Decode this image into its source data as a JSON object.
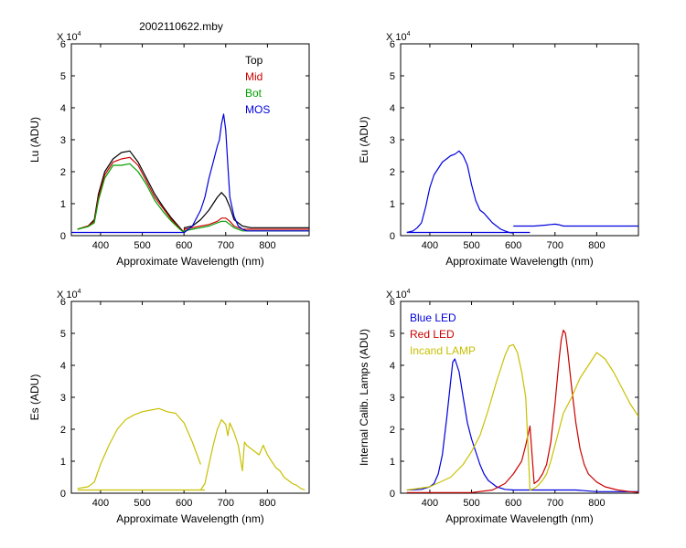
{
  "title": "2002110622.mby",
  "chart_data": [
    {
      "type": "line",
      "ylabel": "Lu (ADU)",
      "xlabel": "Approximate Wavelength (nm)",
      "y_multiplier": "X 10",
      "y_multiplier_exp": "4",
      "xlim": [
        330,
        900
      ],
      "ylim": [
        0,
        6
      ],
      "x_ticks": [
        "400",
        "500",
        "600",
        "700",
        "800"
      ],
      "y_ticks": [
        "0",
        "1",
        "2",
        "3",
        "4",
        "5",
        "6"
      ],
      "legend_placement": "top-right",
      "series": [
        {
          "name": "Top",
          "color": "#000000",
          "x": [
            345,
            370,
            385,
            395,
            410,
            430,
            450,
            470,
            490,
            510,
            530,
            550,
            570,
            590,
            600,
            601,
            620,
            640,
            660,
            680,
            690,
            700,
            710,
            720,
            740,
            760,
            900
          ],
          "y": [
            0.2,
            0.3,
            0.5,
            1.3,
            2.0,
            2.4,
            2.6,
            2.65,
            2.3,
            1.8,
            1.3,
            0.9,
            0.55,
            0.25,
            0.1,
            0.25,
            0.3,
            0.5,
            0.8,
            1.2,
            1.35,
            1.2,
            0.9,
            0.5,
            0.3,
            0.25,
            0.25
          ]
        },
        {
          "name": "Mid",
          "color": "#cc0000",
          "x": [
            345,
            370,
            385,
            395,
            410,
            430,
            450,
            470,
            490,
            510,
            530,
            550,
            570,
            590,
            600,
            601,
            620,
            640,
            660,
            680,
            690,
            700,
            710,
            720,
            740,
            760,
            900
          ],
          "y": [
            0.2,
            0.3,
            0.45,
            1.2,
            1.9,
            2.3,
            2.4,
            2.45,
            2.2,
            1.7,
            1.2,
            0.85,
            0.5,
            0.22,
            0.1,
            0.2,
            0.25,
            0.3,
            0.35,
            0.45,
            0.55,
            0.55,
            0.45,
            0.3,
            0.2,
            0.2,
            0.2
          ]
        },
        {
          "name": "Bot",
          "color": "#00a000",
          "x": [
            345,
            370,
            385,
            395,
            410,
            430,
            450,
            470,
            490,
            510,
            530,
            550,
            570,
            590,
            600,
            601,
            620,
            640,
            660,
            680,
            690,
            700,
            710,
            720,
            740,
            760,
            900
          ],
          "y": [
            0.2,
            0.28,
            0.4,
            1.1,
            1.8,
            2.2,
            2.2,
            2.25,
            2.0,
            1.6,
            1.1,
            0.75,
            0.45,
            0.2,
            0.1,
            0.15,
            0.2,
            0.25,
            0.3,
            0.4,
            0.45,
            0.45,
            0.35,
            0.25,
            0.15,
            0.15,
            0.15
          ]
        },
        {
          "name": "MOS",
          "color": "#0000dd",
          "x": [
            330,
            345,
            360,
            380,
            400,
            600,
            601,
            620,
            640,
            650,
            660,
            670,
            680,
            685,
            690,
            695,
            700,
            705,
            710,
            720,
            730,
            740,
            750,
            900
          ],
          "y": [
            0.1,
            0.1,
            0.1,
            0.1,
            0.1,
            0.1,
            0.1,
            0.3,
            0.8,
            1.2,
            1.8,
            2.3,
            2.8,
            3.0,
            3.5,
            3.8,
            3.3,
            2.2,
            1.2,
            0.6,
            0.3,
            0.2,
            0.15,
            0.15
          ]
        }
      ]
    },
    {
      "type": "line",
      "ylabel": "Eu  (ADU)",
      "xlabel": "Approximate Wavelength (nm)",
      "y_multiplier": "X 10",
      "y_multiplier_exp": "4",
      "xlim": [
        330,
        900
      ],
      "ylim": [
        0,
        6
      ],
      "x_ticks": [
        "400",
        "500",
        "600",
        "700",
        "800"
      ],
      "y_ticks": [
        "0",
        "1",
        "2",
        "3",
        "4",
        "5",
        "6"
      ],
      "series": [
        {
          "color": "#0000dd",
          "x": [
            345,
            360,
            370,
            380,
            390,
            400,
            410,
            420,
            430,
            440,
            450,
            460,
            470,
            480,
            490,
            500,
            510,
            520,
            530,
            540,
            550,
            560,
            570,
            580,
            590,
            600
          ],
          "y": [
            0.1,
            0.15,
            0.25,
            0.4,
            0.9,
            1.5,
            1.9,
            2.1,
            2.3,
            2.4,
            2.5,
            2.55,
            2.65,
            2.5,
            2.2,
            1.6,
            1.1,
            0.8,
            0.7,
            0.55,
            0.4,
            0.3,
            0.2,
            0.15,
            0.1,
            0.08
          ]
        },
        {
          "color": "#0000dd",
          "x": [
            345,
            640
          ],
          "y": [
            0.1,
            0.1
          ]
        },
        {
          "color": "#0000dd",
          "x": [
            600,
            620,
            650,
            680,
            690,
            700,
            710,
            720,
            740,
            760,
            900
          ],
          "y": [
            0.3,
            0.3,
            0.3,
            0.33,
            0.35,
            0.36,
            0.34,
            0.3,
            0.3,
            0.3,
            0.3
          ]
        }
      ]
    },
    {
      "type": "line",
      "ylabel": "Es  (ADU)",
      "xlabel": "Approximate Wavelength (nm)",
      "y_multiplier": "X 10",
      "y_multiplier_exp": "4",
      "xlim": [
        330,
        900
      ],
      "ylim": [
        0,
        6
      ],
      "x_ticks": [
        "400",
        "500",
        "600",
        "700",
        "800"
      ],
      "y_ticks": [
        "0",
        "1",
        "2",
        "3",
        "4",
        "5",
        "6"
      ],
      "series": [
        {
          "color": "#c8c000",
          "x": [
            345,
            370,
            385,
            400,
            420,
            440,
            460,
            480,
            500,
            520,
            540,
            560,
            580,
            600,
            620,
            640
          ],
          "y": [
            0.15,
            0.2,
            0.35,
            0.9,
            1.5,
            2.0,
            2.3,
            2.45,
            2.55,
            2.6,
            2.65,
            2.55,
            2.5,
            2.2,
            1.6,
            0.9
          ]
        },
        {
          "color": "#c8c000",
          "x": [
            345,
            600,
            620,
            640,
            650
          ],
          "y": [
            0.1,
            0.1,
            0.1,
            0.1,
            0.1
          ]
        },
        {
          "color": "#c8c000",
          "x": [
            640,
            650,
            660,
            670,
            680,
            690,
            700,
            705,
            710,
            720,
            730,
            740,
            745,
            750,
            760,
            770,
            780,
            790,
            800,
            810,
            820,
            830,
            840,
            850,
            860,
            870,
            880,
            890
          ],
          "y": [
            0.1,
            0.3,
            0.9,
            1.5,
            2.0,
            2.3,
            2.15,
            1.8,
            2.2,
            1.9,
            1.5,
            0.7,
            1.6,
            1.5,
            1.4,
            1.3,
            1.2,
            1.5,
            1.2,
            1.0,
            0.8,
            0.7,
            0.5,
            0.4,
            0.3,
            0.25,
            0.15,
            0.1
          ]
        }
      ]
    },
    {
      "type": "line",
      "ylabel": "Internal Calib. Lamps (ADU)",
      "xlabel": "Approximate Wavelength (nm)",
      "y_multiplier": "X 10",
      "y_multiplier_exp": "4",
      "xlim": [
        330,
        900
      ],
      "ylim": [
        0,
        6
      ],
      "x_ticks": [
        "400",
        "500",
        "600",
        "700",
        "800"
      ],
      "y_ticks": [
        "0",
        "1",
        "2",
        "3",
        "4",
        "5",
        "6"
      ],
      "legend_placement": "top-left",
      "series": [
        {
          "name": "Blue LED",
          "color": "#0000dd",
          "x": [
            345,
            380,
            400,
            410,
            420,
            430,
            440,
            450,
            455,
            460,
            470,
            480,
            490,
            500,
            510,
            520,
            530,
            540,
            560,
            580,
            600,
            640,
            700,
            750,
            800,
            850,
            900
          ],
          "y": [
            0.1,
            0.12,
            0.2,
            0.3,
            0.6,
            1.2,
            2.3,
            3.5,
            4.1,
            4.2,
            3.8,
            3.0,
            2.2,
            1.7,
            1.3,
            0.9,
            0.6,
            0.4,
            0.2,
            0.12,
            0.1,
            0.1,
            0.1,
            0.1,
            0.05,
            0.05,
            0.05
          ]
        },
        {
          "name": "Red LED",
          "color": "#cc0000",
          "x": [
            345,
            500,
            550,
            580,
            600,
            610,
            620,
            630,
            640,
            650,
            660,
            670,
            680,
            690,
            700,
            710,
            715,
            720,
            725,
            730,
            740,
            750,
            760,
            770,
            780,
            800,
            820,
            850,
            880,
            900
          ],
          "y": [
            0.02,
            0.02,
            0.1,
            0.3,
            0.6,
            0.8,
            1.0,
            1.5,
            2.1,
            0.3,
            0.4,
            0.6,
            0.9,
            1.6,
            2.8,
            4.2,
            4.8,
            5.1,
            5.0,
            4.5,
            3.3,
            2.2,
            1.4,
            0.9,
            0.6,
            0.35,
            0.2,
            0.1,
            0.05,
            0.03
          ]
        },
        {
          "name": "Incand LAMP",
          "color": "#c8c000",
          "x": [
            345,
            400,
            450,
            480,
            500,
            520,
            540,
            560,
            570,
            580,
            590,
            600,
            610,
            620,
            630,
            640,
            650,
            660,
            670,
            680,
            690,
            700,
            720,
            740,
            760,
            780,
            800,
            820,
            840,
            860,
            880,
            900
          ],
          "y": [
            0.1,
            0.2,
            0.5,
            0.9,
            1.3,
            1.8,
            2.6,
            3.5,
            3.9,
            4.3,
            4.6,
            4.65,
            4.4,
            3.8,
            3.0,
            0.1,
            0.15,
            0.25,
            0.4,
            0.6,
            1.0,
            1.5,
            2.5,
            3.0,
            3.6,
            4.0,
            4.4,
            4.2,
            3.8,
            3.3,
            2.8,
            2.4
          ]
        }
      ]
    }
  ]
}
